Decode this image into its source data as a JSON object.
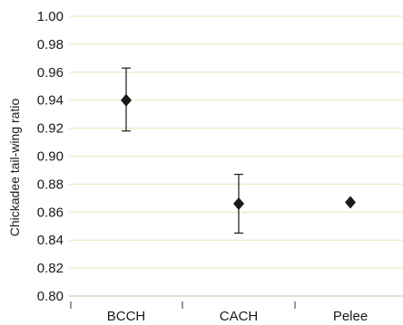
{
  "chart_data": {
    "type": "scatter",
    "title": "",
    "xlabel": "",
    "ylabel": "Chickadee tail-wing ratio",
    "categories": [
      "BCCH",
      "CACH",
      "Pelee"
    ],
    "values": [
      0.94,
      0.866,
      0.867
    ],
    "error_low": [
      0.918,
      0.845,
      0.867
    ],
    "error_high": [
      0.963,
      0.887,
      0.867
    ],
    "ylim": [
      0.8,
      1.0
    ],
    "yticks": [
      "0.80",
      "0.82",
      "0.84",
      "0.86",
      "0.88",
      "0.90",
      "0.92",
      "0.94",
      "0.96",
      "0.98",
      "1.00"
    ],
    "grid": true,
    "marker": "diamond",
    "colors": {
      "grid": "#eae3bd",
      "axis": "#c9c3a0",
      "marker": "#1a1a1a",
      "text": "#1a1a1a"
    }
  }
}
